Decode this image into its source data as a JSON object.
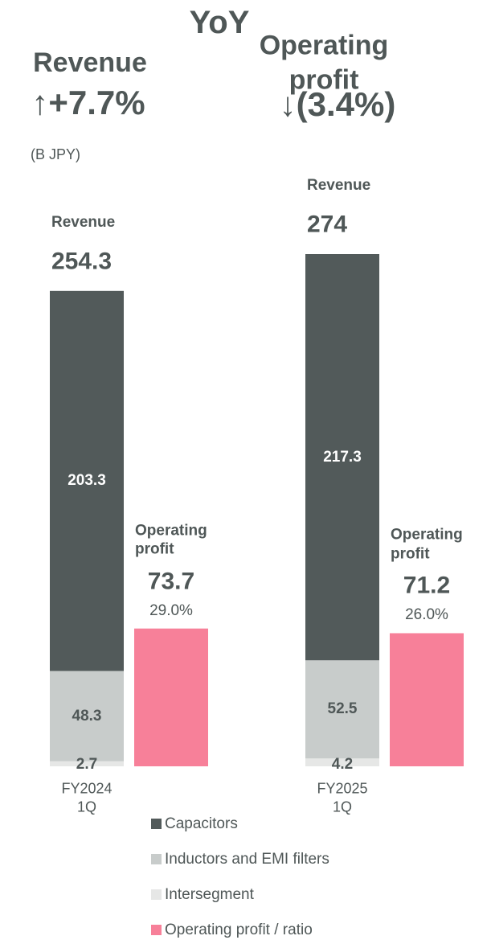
{
  "chart_data": {
    "type": "stacked_bar",
    "title": "YoY",
    "headline": [
      {
        "label": "Revenue",
        "change": "↑+7.7%"
      },
      {
        "label": "Operating profit",
        "change": "↓(3.4%)"
      }
    ],
    "unit": "(B JPY)",
    "categories": [
      "FY2024\n1Q",
      "FY2025\n1Q"
    ],
    "revenue_label": "Revenue",
    "revenue_totals": [
      254.3,
      274.0
    ],
    "profit_label": "Operating profit",
    "series": [
      {
        "name": "Intersegment",
        "color": "#e6e7e6",
        "label_color": "#4f5757",
        "values": [
          2.7,
          4.2
        ]
      },
      {
        "name": "Inductors and EMI filters",
        "color": "#c8cccb",
        "label_color": "#4f5757",
        "values": [
          48.3,
          52.5
        ]
      },
      {
        "name": "Capacitors",
        "color": "#525a5a",
        "label_color": "#ffffff",
        "values": [
          203.3,
          217.3
        ]
      },
      {
        "name": "Operating profit / ratio",
        "color": "#f78099",
        "values": [
          73.7,
          71.2
        ],
        "ratios": [
          29.0,
          26.0
        ],
        "ratio_labels": [
          "29.0%",
          "26.0%"
        ]
      }
    ],
    "legend_order": [
      2,
      1,
      0,
      3
    ]
  }
}
